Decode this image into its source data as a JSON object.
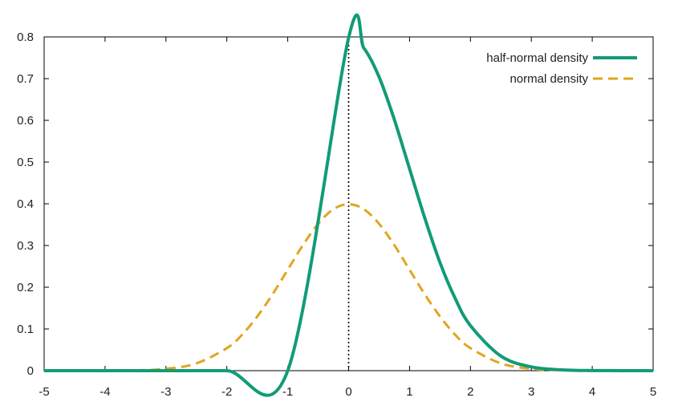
{
  "chart_data": {
    "type": "line",
    "title": "",
    "xlabel": "",
    "ylabel": "",
    "xlim": [
      -5,
      5
    ],
    "ylim": [
      0,
      0.8
    ],
    "x_ticks": [
      "-5",
      "-4",
      "-3",
      "-2",
      "-1",
      "0",
      "1",
      "2",
      "3",
      "4",
      "5"
    ],
    "y_ticks": [
      "0",
      "0.1",
      "0.2",
      "0.3",
      "0.4",
      "0.5",
      "0.6",
      "0.7",
      "0.8"
    ],
    "grid": false,
    "legend": "top-right",
    "vertical_reference_line": {
      "x": 0,
      "style": "dotted",
      "color": "#000000"
    },
    "series": [
      {
        "name": "half-normal density",
        "color": "#129b78",
        "style": "solid",
        "x": [
          -5,
          -4,
          -3,
          -2,
          -1,
          0,
          0.25,
          0.5,
          0.75,
          1,
          1.25,
          1.5,
          1.75,
          2,
          2.5,
          3,
          3.5,
          4,
          5
        ],
        "y": [
          0,
          0,
          0,
          0,
          0,
          0.798,
          0.773,
          0.704,
          0.602,
          0.484,
          0.366,
          0.259,
          0.173,
          0.108,
          0.035,
          0.009,
          0.002,
          0.0003,
          0
        ]
      },
      {
        "name": "normal density",
        "color": "#e0a61c",
        "style": "dashed",
        "x": [
          -5,
          -4,
          -3.5,
          -3,
          -2.5,
          -2,
          -1.75,
          -1.5,
          -1.25,
          -1,
          -0.75,
          -0.5,
          -0.25,
          0,
          0.25,
          0.5,
          0.75,
          1,
          1.25,
          1.5,
          1.75,
          2,
          2.5,
          3,
          3.5,
          4,
          5
        ],
        "y": [
          0,
          0.0001,
          0.0009,
          0.0044,
          0.0175,
          0.054,
          0.086,
          0.13,
          0.183,
          0.242,
          0.301,
          0.352,
          0.387,
          0.399,
          0.387,
          0.352,
          0.301,
          0.242,
          0.183,
          0.13,
          0.086,
          0.054,
          0.0175,
          0.0044,
          0.0009,
          0.0001,
          0
        ]
      }
    ]
  }
}
